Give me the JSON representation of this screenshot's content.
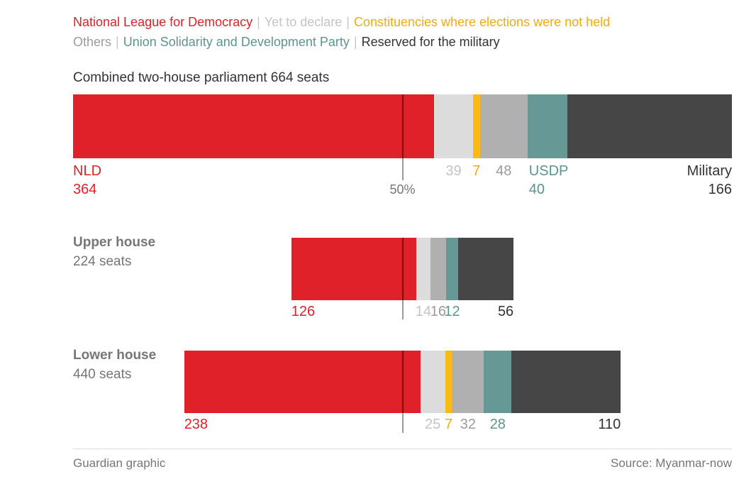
{
  "parties": {
    "nld": {
      "name": "National League for Democracy",
      "color": "#e0212a",
      "text_color": "#e0212a"
    },
    "undeclared": {
      "name": "Yet to declare",
      "color": "#dcdcdc",
      "text_color": "#c4c4c4"
    },
    "not_held": {
      "name": "Constituencies where elections were not held",
      "color": "#fab916",
      "text_color": "#f5ab0f"
    },
    "others": {
      "name": "Others",
      "color": "#b0b0b0",
      "text_color": "#9b9b9b"
    },
    "usdp": {
      "name": "Union Solidarity and Development Party",
      "color": "#669996",
      "text_color": "#5d948f"
    },
    "military": {
      "name": "Reserved for the military",
      "color": "#464646",
      "text_color": "#333333"
    }
  },
  "legend": {
    "separator": "|",
    "separator_color": "#c8c8c8",
    "rows": [
      [
        "nld",
        "undeclared",
        "not_held"
      ],
      [
        "others",
        "usdp",
        "military"
      ]
    ]
  },
  "chart_data": {
    "type": "bar",
    "orientation": "horizontal-stacked",
    "unit": "seats",
    "fifty_percent_label": "50%",
    "bars": [
      {
        "id": "combined",
        "title": "Combined two-house parliament 664 seats",
        "total_seats": 664,
        "show_fifty_label": true,
        "segments": [
          {
            "party": "nld",
            "value": 364,
            "label": "NLD"
          },
          {
            "party": "undeclared",
            "value": 39
          },
          {
            "party": "not_held",
            "value": 7
          },
          {
            "party": "others",
            "value": 48
          },
          {
            "party": "usdp",
            "value": 40,
            "label": "USDP"
          },
          {
            "party": "military",
            "value": 166,
            "label": "Military"
          }
        ]
      },
      {
        "id": "upper",
        "title": "Upper house",
        "subtitle": "224 seats",
        "total_seats": 224,
        "show_fifty_label": false,
        "segments": [
          {
            "party": "nld",
            "value": 126
          },
          {
            "party": "undeclared",
            "value": 14
          },
          {
            "party": "others",
            "value": 16
          },
          {
            "party": "usdp",
            "value": 12
          },
          {
            "party": "military",
            "value": 56
          }
        ]
      },
      {
        "id": "lower",
        "title": "Lower house",
        "subtitle": "440 seats",
        "total_seats": 440,
        "show_fifty_label": false,
        "segments": [
          {
            "party": "nld",
            "value": 238
          },
          {
            "party": "undeclared",
            "value": 25
          },
          {
            "party": "not_held",
            "value": 7
          },
          {
            "party": "others",
            "value": 32
          },
          {
            "party": "usdp",
            "value": 28
          },
          {
            "party": "military",
            "value": 110
          }
        ]
      }
    ]
  },
  "footer": {
    "credit": "Guardian graphic",
    "source": "Source: Myanmar-now",
    "divider_color": "#dcdcdc"
  }
}
